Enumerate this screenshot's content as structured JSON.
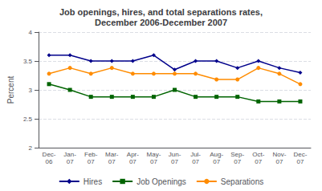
{
  "chart_data": {
    "type": "line",
    "title": "Job openings, hires, and total separations rates,\nDecember 2006-December 2007",
    "y_label": "Percent",
    "categories": [
      "Dec-\n06",
      "Jan-\n07",
      "Feb-\n07",
      "Mar-\n07",
      "Apr-\n07",
      "May-\n07",
      "Jun-\n07",
      "Jul-\n07",
      "Aug-\n07",
      "Sep-\n07",
      "Oct-\n07",
      "Nov-\n07",
      "Dec-\n07"
    ],
    "series": [
      {
        "name": "Hires",
        "color": "#00008B",
        "marker": "diamond",
        "values": [
          3.6,
          3.6,
          3.5,
          3.5,
          3.5,
          3.6,
          3.35,
          3.5,
          3.5,
          3.38,
          3.5,
          3.38,
          3.3
        ]
      },
      {
        "name": "Job Openings",
        "color": "#006400",
        "marker": "square",
        "values": [
          3.1,
          3.0,
          2.88,
          2.88,
          2.88,
          2.88,
          3.0,
          2.88,
          2.88,
          2.88,
          2.8,
          2.8,
          2.8
        ]
      },
      {
        "name": "Separations",
        "color": "#FF8C00",
        "marker": "circle",
        "values": [
          3.28,
          3.38,
          3.28,
          3.38,
          3.28,
          3.28,
          3.28,
          3.28,
          3.18,
          3.18,
          3.38,
          3.28,
          3.1
        ]
      }
    ],
    "ylim": [
      2.0,
      4.0
    ],
    "yticks": [
      2,
      2.5,
      3,
      3.5,
      4
    ],
    "grid": true,
    "legend": "bottom"
  }
}
